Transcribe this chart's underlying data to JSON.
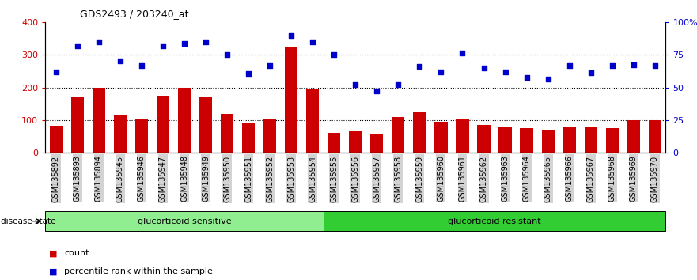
{
  "title": "GDS2493 / 203240_at",
  "samples": [
    "GSM135892",
    "GSM135893",
    "GSM135894",
    "GSM135945",
    "GSM135946",
    "GSM135947",
    "GSM135948",
    "GSM135949",
    "GSM135950",
    "GSM135951",
    "GSM135952",
    "GSM135953",
    "GSM135954",
    "GSM135955",
    "GSM135956",
    "GSM135957",
    "GSM135958",
    "GSM135959",
    "GSM135960",
    "GSM135961",
    "GSM135962",
    "GSM135963",
    "GSM135964",
    "GSM135965",
    "GSM135966",
    "GSM135967",
    "GSM135968",
    "GSM135969",
    "GSM135970"
  ],
  "counts": [
    82,
    170,
    200,
    115,
    105,
    175,
    200,
    170,
    120,
    92,
    105,
    325,
    195,
    60,
    65,
    55,
    110,
    125,
    95,
    105,
    85,
    80,
    75,
    70,
    80,
    80,
    75,
    100,
    100
  ],
  "percentiles": [
    248,
    328,
    340,
    282,
    268,
    328,
    335,
    340,
    300,
    243,
    268,
    360,
    340,
    300,
    210,
    190,
    210,
    265,
    248,
    305,
    260,
    248,
    230,
    225,
    268,
    245,
    268,
    270,
    268
  ],
  "group1_count": 13,
  "group1_label": "glucorticoid sensitive",
  "group2_label": "glucorticoid resistant",
  "group1_color": "#90EE90",
  "group2_color": "#32CD32",
  "bar_color": "#CC0000",
  "scatter_color": "#0000CC",
  "left_yaxis_color": "#CC0000",
  "right_yaxis_color": "#0000CC",
  "left_ylim": [
    0,
    400
  ],
  "left_yticks": [
    0,
    100,
    200,
    300,
    400
  ],
  "right_yticks": [
    0,
    100,
    200,
    300,
    400
  ],
  "right_yticklabels": [
    "0",
    "25",
    "50",
    "75",
    "100%"
  ],
  "grid_values": [
    100,
    200,
    300
  ],
  "background_color": "#ffffff",
  "tick_bg_color": "#d3d3d3",
  "disease_state_label": "disease state",
  "legend_count_label": "count",
  "legend_percentile_label": "percentile rank within the sample"
}
